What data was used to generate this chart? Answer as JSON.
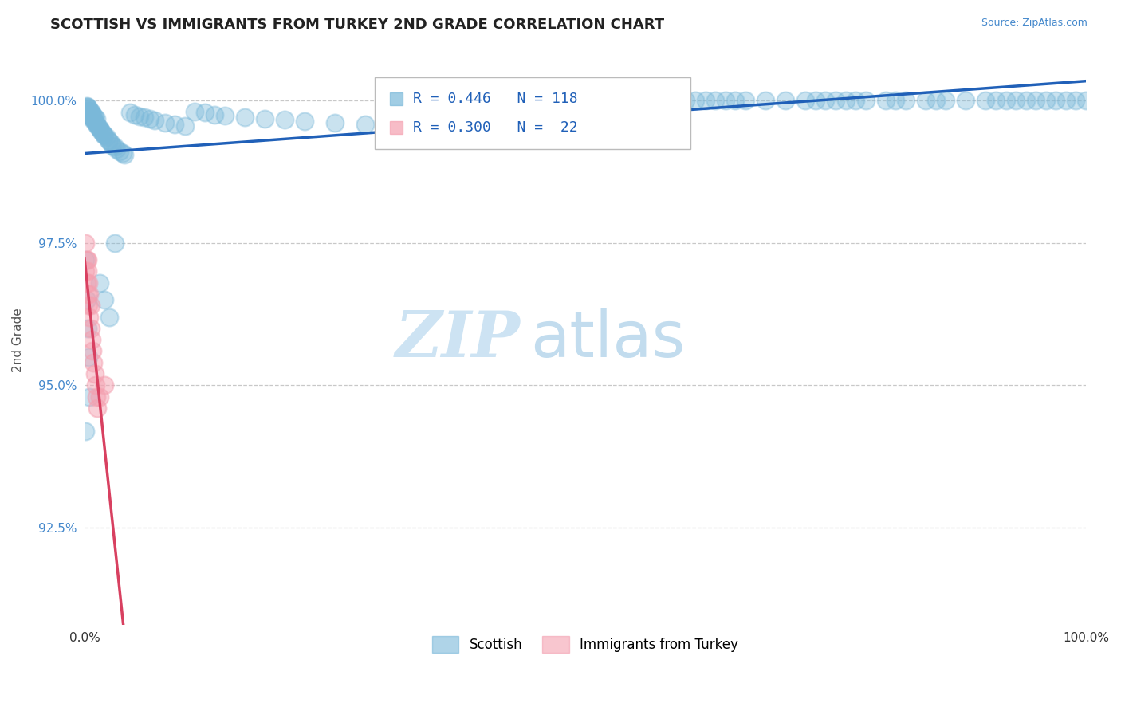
{
  "title": "SCOTTISH VS IMMIGRANTS FROM TURKEY 2ND GRADE CORRELATION CHART",
  "source": "Source: ZipAtlas.com",
  "ylabel": "2nd Grade",
  "xlim": [
    0.0,
    1.0
  ],
  "ylim_low": 0.908,
  "ylim_high": 1.008,
  "yticks": [
    0.925,
    0.95,
    0.975,
    1.0
  ],
  "ytick_labels": [
    "92.5%",
    "95.0%",
    "97.5%",
    "100.0%"
  ],
  "xtick_vals": [
    0.0,
    1.0
  ],
  "xtick_labels": [
    "0.0%",
    "100.0%"
  ],
  "background_color": "#ffffff",
  "grid_color": "#c8c8c8",
  "blue_R": 0.446,
  "blue_N": 118,
  "pink_R": 0.3,
  "pink_N": 22,
  "blue_color": "#7ab8d9",
  "pink_color": "#f4a0b0",
  "blue_line_color": "#2060b8",
  "pink_line_color": "#d84060",
  "legend_label_blue": "Scottish",
  "legend_label_pink": "Immigrants from Turkey",
  "title_fontsize": 13,
  "source_fontsize": 9,
  "axis_label_fontsize": 11,
  "tick_fontsize": 11,
  "r_box_blue_text": "R = 0.446   N = 118",
  "r_box_pink_text": "R = 0.300   N =  22",
  "blue_scatter_x": [
    0.001,
    0.002,
    0.003,
    0.004,
    0.005,
    0.006,
    0.007,
    0.008,
    0.009,
    0.01,
    0.011,
    0.012,
    0.013,
    0.014,
    0.015,
    0.016,
    0.017,
    0.018,
    0.019,
    0.02,
    0.022,
    0.024,
    0.025,
    0.026,
    0.028,
    0.03,
    0.032,
    0.035,
    0.038,
    0.04,
    0.045,
    0.05,
    0.055,
    0.06,
    0.065,
    0.07,
    0.08,
    0.09,
    0.1,
    0.11,
    0.12,
    0.13,
    0.14,
    0.16,
    0.18,
    0.2,
    0.22,
    0.25,
    0.28,
    0.3,
    0.32,
    0.35,
    0.38,
    0.4,
    0.42,
    0.45,
    0.48,
    0.5,
    0.52,
    0.55,
    0.58,
    0.6,
    0.62,
    0.64,
    0.65,
    0.66,
    0.68,
    0.7,
    0.72,
    0.74,
    0.75,
    0.76,
    0.78,
    0.8,
    0.81,
    0.82,
    0.84,
    0.85,
    0.86,
    0.88,
    0.9,
    0.91,
    0.92,
    0.93,
    0.94,
    0.95,
    0.96,
    0.97,
    0.98,
    0.99,
    1.0,
    0.73,
    0.77,
    0.53,
    0.56,
    0.59,
    0.61,
    0.63,
    0.002,
    0.003,
    0.004,
    0.005,
    0.006,
    0.007,
    0.008,
    0.009,
    0.01,
    0.012,
    0.001,
    0.002,
    0.003,
    0.004,
    0.005,
    0.015,
    0.02,
    0.025,
    0.03,
    0.001
  ],
  "blue_scatter_y": [
    0.9985,
    0.9988,
    0.9982,
    0.9978,
    0.9975,
    0.9972,
    0.997,
    0.9968,
    0.9965,
    0.9963,
    0.996,
    0.9958,
    0.9955,
    0.9952,
    0.995,
    0.9948,
    0.9945,
    0.9943,
    0.994,
    0.9938,
    0.9935,
    0.993,
    0.9928,
    0.9925,
    0.992,
    0.9918,
    0.9915,
    0.991,
    0.9908,
    0.9905,
    0.9978,
    0.9975,
    0.9972,
    0.997,
    0.9968,
    0.9965,
    0.996,
    0.9958,
    0.9955,
    0.998,
    0.9978,
    0.9975,
    0.9973,
    0.997,
    0.9968,
    0.9966,
    0.9963,
    0.996,
    0.9958,
    0.9999,
    0.9999,
    1.0,
    1.0,
    1.0,
    1.0,
    1.0,
    1.0,
    1.0,
    1.0,
    1.0,
    1.0,
    1.0,
    1.0,
    1.0,
    1.0,
    1.0,
    1.0,
    1.0,
    1.0,
    1.0,
    1.0,
    1.0,
    1.0,
    1.0,
    1.0,
    1.0,
    1.0,
    1.0,
    1.0,
    1.0,
    1.0,
    1.0,
    1.0,
    1.0,
    1.0,
    1.0,
    1.0,
    1.0,
    1.0,
    1.0,
    1.0,
    1.0,
    1.0,
    1.0,
    1.0,
    1.0,
    1.0,
    1.0,
    0.999,
    0.9988,
    0.9985,
    0.9983,
    0.998,
    0.9978,
    0.9975,
    0.9973,
    0.997,
    0.9968,
    0.972,
    0.965,
    0.96,
    0.955,
    0.948,
    0.968,
    0.965,
    0.962,
    0.975,
    0.942
  ],
  "pink_scatter_x": [
    0.001,
    0.002,
    0.003,
    0.004,
    0.005,
    0.006,
    0.007,
    0.008,
    0.009,
    0.01,
    0.011,
    0.012,
    0.013,
    0.001,
    0.002,
    0.003,
    0.004,
    0.005,
    0.006,
    0.003,
    0.015,
    0.02
  ],
  "pink_scatter_y": [
    0.97,
    0.968,
    0.966,
    0.964,
    0.962,
    0.96,
    0.958,
    0.956,
    0.954,
    0.952,
    0.95,
    0.948,
    0.946,
    0.975,
    0.972,
    0.97,
    0.968,
    0.966,
    0.964,
    0.972,
    0.948,
    0.95
  ]
}
